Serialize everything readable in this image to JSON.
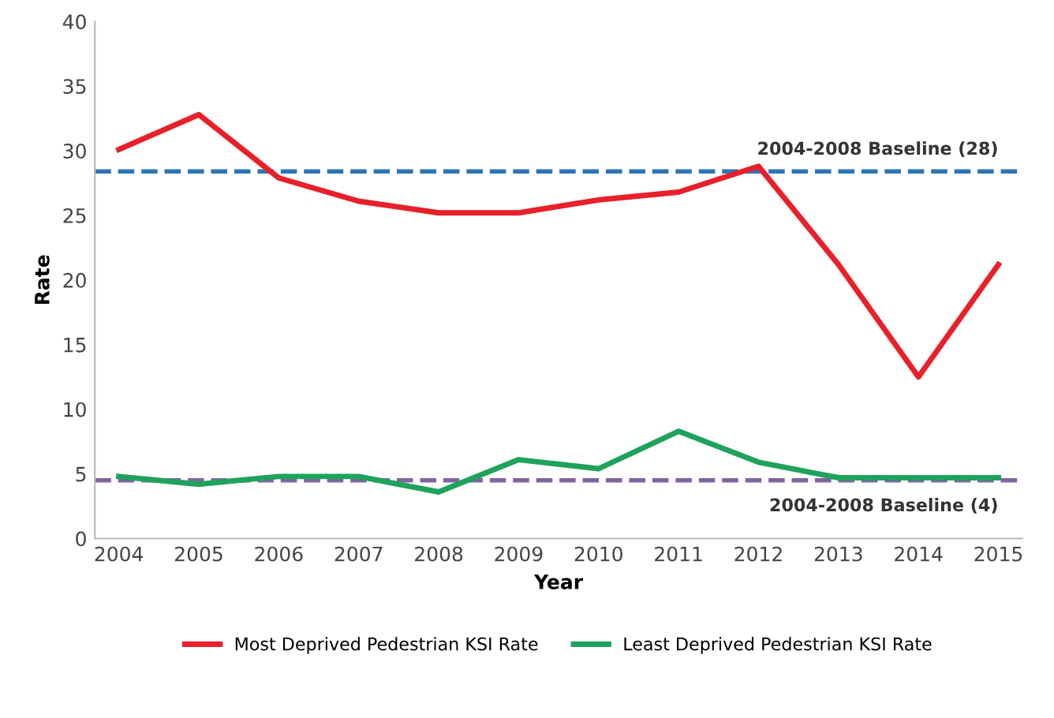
{
  "chart_data": {
    "type": "line",
    "xlabel": "Year",
    "ylabel": "Rate",
    "categories": [
      "2004",
      "2005",
      "2006",
      "2007",
      "2008",
      "2009",
      "2010",
      "2011",
      "2012",
      "2013",
      "2014",
      "2015"
    ],
    "series": [
      {
        "name": "Most Deprived Pedestrian KSI Rate",
        "color": "#e8202a",
        "values": [
          30.1,
          32.8,
          27.9,
          26.1,
          25.2,
          25.2,
          26.2,
          26.8,
          28.8,
          21.2,
          12.5,
          21.2
        ]
      },
      {
        "name": "Least Deprived Pedestrian KSI Rate",
        "color": "#1fa35c",
        "values": [
          4.8,
          4.2,
          4.8,
          4.8,
          3.6,
          6.1,
          5.4,
          8.3,
          5.9,
          4.7,
          4.7,
          4.7
        ]
      }
    ],
    "ref_lines": [
      {
        "axis": "y",
        "value": 28.4,
        "label": "2004-2008 Baseline (28)",
        "color": "#2e75b6",
        "line_style": "dashed"
      },
      {
        "axis": "y",
        "value": 4.5,
        "label": "2004-2008 Baseline (4)",
        "color": "#8064a2",
        "line_style": "dashed"
      }
    ],
    "ylim": [
      0,
      40
    ],
    "yticks": [
      0,
      5,
      10,
      15,
      20,
      25,
      30,
      35,
      40
    ],
    "grid": false,
    "legend": "bottom",
    "marker": "none",
    "line_style": "solid"
  }
}
